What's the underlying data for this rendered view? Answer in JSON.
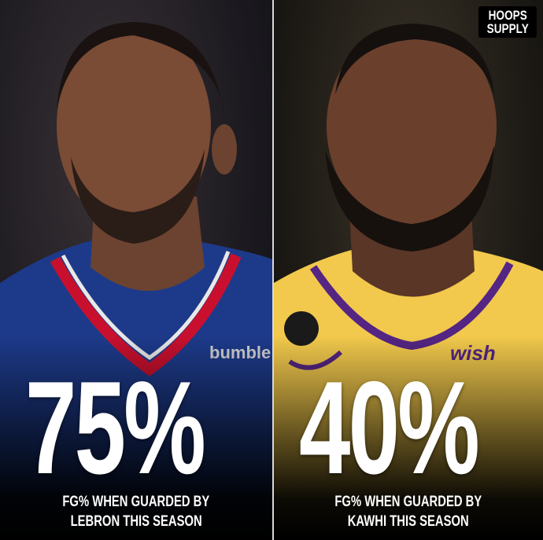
{
  "brand": {
    "logo_line1": "HOOPS",
    "logo_line2": "SUPPLY"
  },
  "left": {
    "stat": "75%",
    "caption_line1": "FG% WHEN GUARDED BY",
    "caption_line2": "LEBRON THIS SEASON",
    "jersey_sponsor": "bumble",
    "jersey_color": "#1d3a8a",
    "trim_color": "#c8102e"
  },
  "right": {
    "stat": "40%",
    "caption_line1": "FG% WHEN GUARDED BY",
    "caption_line2": "KAWHI THIS SEASON",
    "jersey_sponsor": "wish",
    "jersey_color": "#f2c94c",
    "trim_color": "#552583"
  }
}
